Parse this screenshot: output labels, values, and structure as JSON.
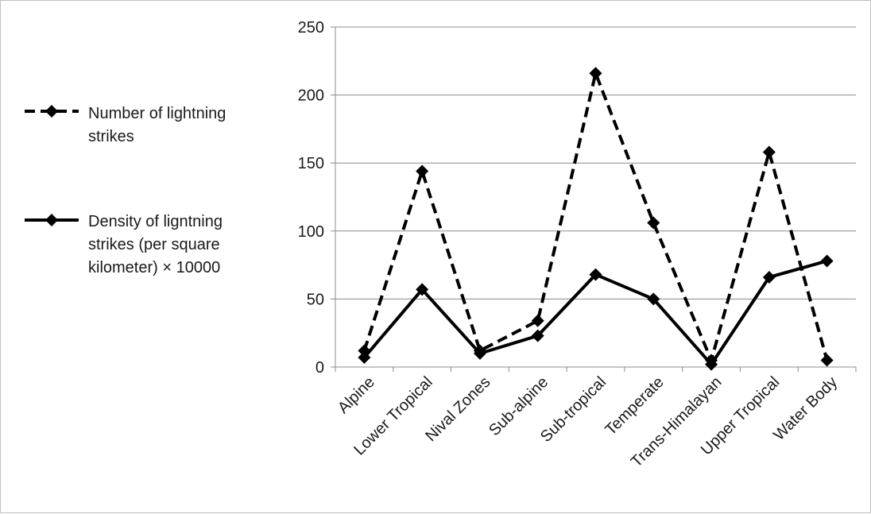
{
  "chart_data": {
    "type": "line",
    "categories": [
      "Alpine",
      "Lower Tropical",
      "Nival Zones",
      "Sub-alpine",
      "Sub-tropical",
      "Temperate",
      "Trans-Himalayan",
      "Upper Tropical",
      "Water Body"
    ],
    "ylim": [
      0,
      250
    ],
    "yticks": [
      0,
      50,
      100,
      150,
      200,
      250
    ],
    "grid": true,
    "legend_position": "left",
    "series": [
      {
        "name": "Number of lightning strikes",
        "legend_lines": [
          "Number of lightning",
          "strikes"
        ],
        "style": "dashed",
        "marker": "diamond",
        "color": "#000000",
        "values": [
          12,
          144,
          12,
          34,
          216,
          106,
          5,
          158,
          5
        ]
      },
      {
        "name": "Density of ligntning strikes (per square kilometer) × 10000",
        "legend_lines": [
          "Density of ligntning",
          "strikes (per square",
          "kilometer) × 10000"
        ],
        "style": "solid",
        "marker": "diamond",
        "color": "#000000",
        "values": [
          7,
          57,
          10,
          23,
          68,
          50,
          2,
          66,
          78
        ]
      }
    ]
  }
}
